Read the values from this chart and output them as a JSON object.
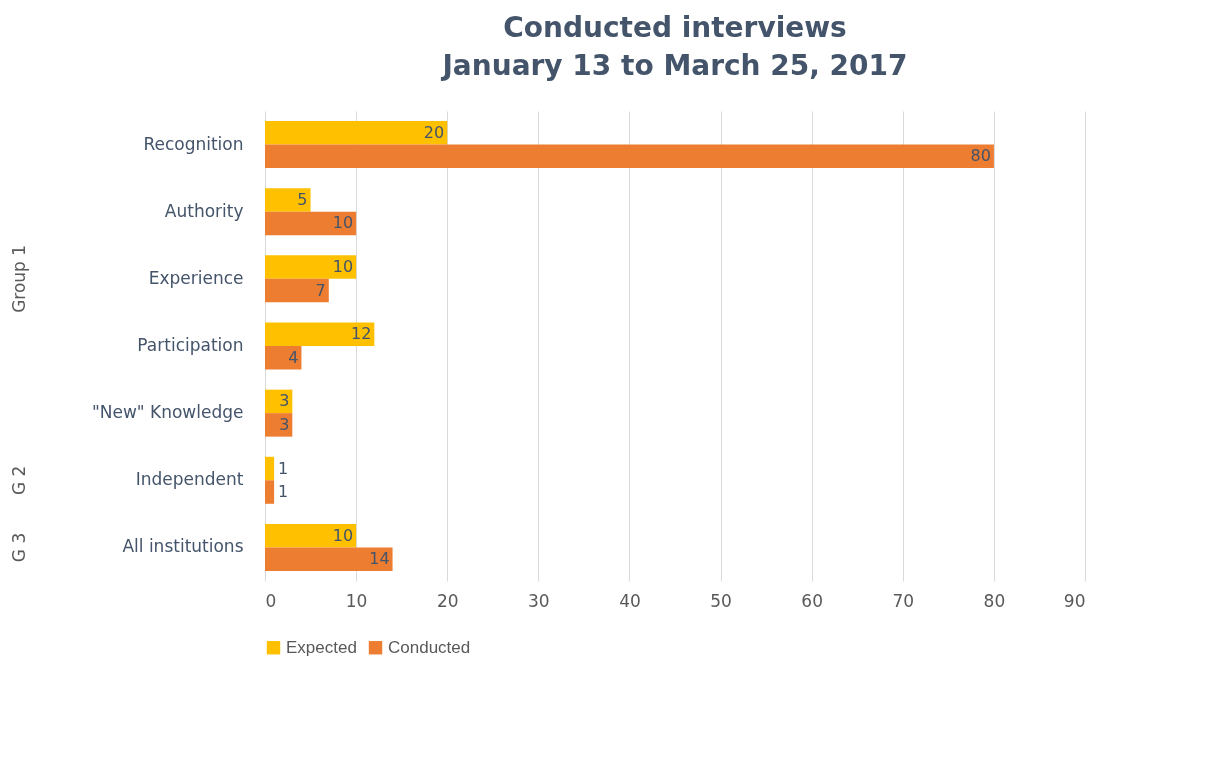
{
  "chart_data": {
    "type": "bar",
    "orientation": "horizontal",
    "title": "Conducted interviews",
    "subtitle": "January 13 to March 25, 2017",
    "categories": [
      "Recognition",
      "Authority",
      "Experience",
      "Participation",
      "\"New\" Knowledge",
      "Independent",
      "All institutions"
    ],
    "series": [
      {
        "name": "Expected",
        "color": "#ffc000",
        "values": [
          20,
          5,
          10,
          12,
          3,
          1,
          10
        ]
      },
      {
        "name": "Conducted",
        "color": "#ed7d31",
        "values": [
          80,
          10,
          7,
          4,
          3,
          1,
          14
        ]
      }
    ],
    "xlim": [
      0,
      90
    ],
    "xticks": [
      0,
      10,
      20,
      30,
      40,
      50,
      60,
      70,
      80,
      90
    ],
    "grid": "x",
    "legend": "bottom",
    "data_labels": true,
    "annotations": [
      "Group 1",
      "G 2",
      "G 3"
    ]
  }
}
